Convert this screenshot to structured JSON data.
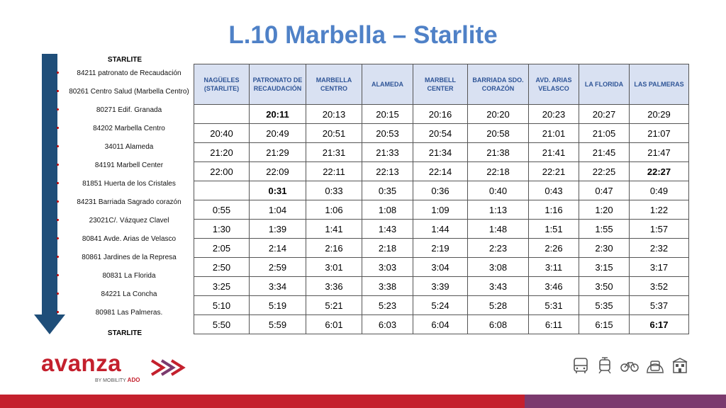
{
  "title": "L.10 Marbella – Starlite",
  "stops_list": {
    "top_label": "STARLITE",
    "bottom_label": "STARLITE",
    "items": [
      "84211 patronato de Recaudación",
      "80261 Centro Salud (Marbella Centro)",
      "80271 Edif. Granada",
      "84202 Marbella Centro",
      "34011 Alameda",
      "84191 Marbell Center",
      "81851 Huerta de los Cristales",
      "84231 Barriada Sagrado corazón",
      "23021C/. Vázquez Clavel",
      "80841 Avde. Arias de Velasco",
      "80861 Jardines de la Represa",
      "80831 La Florida",
      "84221 La Concha",
      "80981 Las Palmeras."
    ]
  },
  "timetable": {
    "headers": [
      [
        "NAGÜELES",
        "(STARLITE)"
      ],
      [
        "PATRONATO DE",
        "RECAUDACIÓN"
      ],
      [
        "MARBELLA",
        "CENTRO"
      ],
      [
        "ALAMEDA"
      ],
      [
        "MARBELL",
        "CENTER"
      ],
      [
        "BARRIADA SDO.",
        "CORAZÓN"
      ],
      [
        "AVD. ARIAS",
        "VELASCO"
      ],
      [
        "LA FLORIDA"
      ],
      [
        "LAS PALMERAS"
      ]
    ],
    "rows": [
      [
        "",
        "20:11",
        "20:13",
        "20:15",
        "20:16",
        "20:20",
        "20:23",
        "20:27",
        "20:29"
      ],
      [
        "20:40",
        "20:49",
        "20:51",
        "20:53",
        "20:54",
        "20:58",
        "21:01",
        "21:05",
        "21:07"
      ],
      [
        "21:20",
        "21:29",
        "21:31",
        "21:33",
        "21:34",
        "21:38",
        "21:41",
        "21:45",
        "21:47"
      ],
      [
        "22:00",
        "22:09",
        "22:11",
        "22:13",
        "22:14",
        "22:18",
        "22:21",
        "22:25",
        "22:27"
      ],
      [
        "",
        "0:31",
        "0:33",
        "0:35",
        "0:36",
        "0:40",
        "0:43",
        "0:47",
        "0:49"
      ],
      [
        "0:55",
        "1:04",
        "1:06",
        "1:08",
        "1:09",
        "1:13",
        "1:16",
        "1:20",
        "1:22"
      ],
      [
        "1:30",
        "1:39",
        "1:41",
        "1:43",
        "1:44",
        "1:48",
        "1:51",
        "1:55",
        "1:57"
      ],
      [
        "2:05",
        "2:14",
        "2:16",
        "2:18",
        "2:19",
        "2:23",
        "2:26",
        "2:30",
        "2:32"
      ],
      [
        "2:50",
        "2:59",
        "3:01",
        "3:03",
        "3:04",
        "3:08",
        "3:11",
        "3:15",
        "3:17"
      ],
      [
        "3:25",
        "3:34",
        "3:36",
        "3:38",
        "3:39",
        "3:43",
        "3:46",
        "3:50",
        "3:52"
      ],
      [
        "5:10",
        "5:19",
        "5:21",
        "5:23",
        "5:24",
        "5:28",
        "5:31",
        "5:35",
        "5:37"
      ],
      [
        "5:50",
        "5:59",
        "6:01",
        "6:03",
        "6:04",
        "6:08",
        "6:11",
        "6:15",
        "6:17"
      ]
    ],
    "bold_cells": [
      [
        0,
        1
      ],
      [
        3,
        8
      ],
      [
        4,
        1
      ],
      [
        11,
        8
      ]
    ]
  },
  "logo": {
    "brand": "avanza",
    "by": "BY",
    "mobility": "MOBILITY",
    "ado": "ADO"
  },
  "transport_icons": [
    "bus-icon",
    "tram-icon",
    "bicycle-icon",
    "metro-icon",
    "station-icon"
  ],
  "colors": {
    "title": "#4f81c7",
    "header_bg": "#d9e1f2",
    "header_text": "#2f5597",
    "brand_red": "#c4202d",
    "brand_purple": "#7b3a6e",
    "arrow": "#1f4e79"
  }
}
